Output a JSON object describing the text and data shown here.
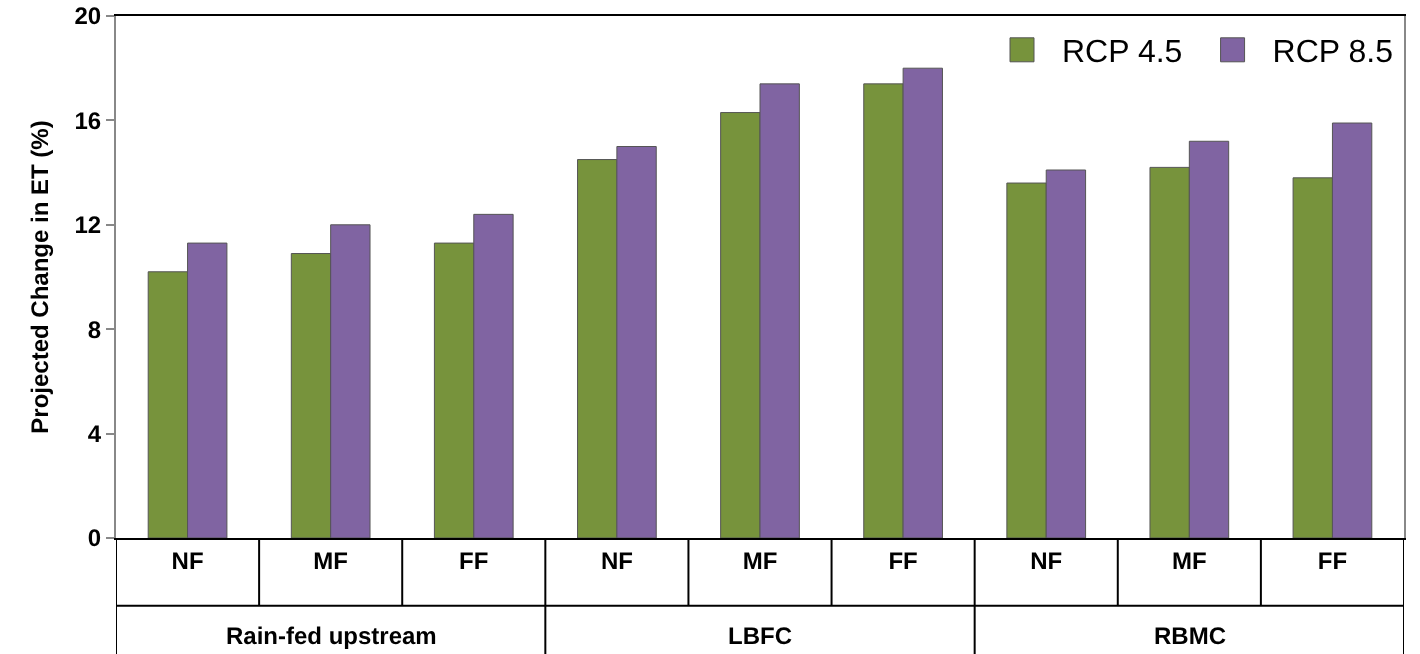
{
  "chart_data": {
    "type": "bar",
    "ylabel": "Projected Change in ET (%)",
    "categories": [
      "NF",
      "MF",
      "FF",
      "NF",
      "MF",
      "FF",
      "NF",
      "MF",
      "FF"
    ],
    "series": [
      {
        "name": "RCP 4.5",
        "color": "#77933c",
        "values": [
          10.2,
          10.9,
          11.3,
          14.5,
          16.3,
          17.4,
          13.6,
          14.2,
          13.8
        ]
      },
      {
        "name": "RCP 8.5",
        "color": "#8064a2",
        "values": [
          11.3,
          12.0,
          12.4,
          15.0,
          17.4,
          18.0,
          14.1,
          15.2,
          15.9
        ]
      }
    ],
    "annotations": [
      "Rain-fed upstream",
      "LBFC",
      "RBMC"
    ],
    "ylim": [
      0,
      20
    ],
    "yticks": [
      0,
      4,
      8,
      12,
      16,
      20
    ],
    "grid": false,
    "legend": "top right"
  }
}
